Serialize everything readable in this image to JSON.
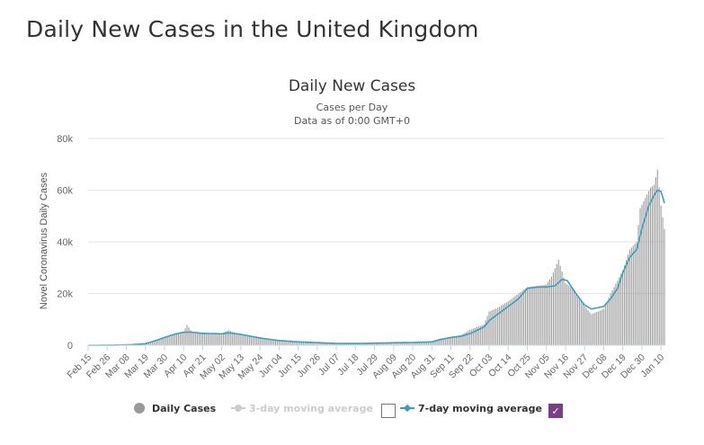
{
  "page": {
    "title": "Daily New Cases in the United Kingdom"
  },
  "chart_data": {
    "type": "bar",
    "title": "Daily New Cases",
    "subtitle_lines": [
      "Cases per Day",
      "Data as of 0:00 GMT+0"
    ],
    "ylabel": "Novel Coronavirus Daily Cases",
    "xlabel": "",
    "ylim": [
      0,
      80000
    ],
    "y_ticks": [
      0,
      20000,
      40000,
      60000,
      80000
    ],
    "y_tick_labels": [
      "0",
      "20k",
      "40k",
      "60k",
      "80k"
    ],
    "x_range": [
      "2020-02-15",
      "2021-01-12"
    ],
    "x_tick_labels": [
      "Feb 15",
      "Feb 26",
      "Mar 08",
      "Mar 19",
      "Mar 30",
      "Apr 10",
      "Apr 21",
      "May 02",
      "May 13",
      "May 24",
      "Jun 04",
      "Jun 15",
      "Jun 26",
      "Jul 07",
      "Jul 18",
      "Jul 29",
      "Aug 09",
      "Aug 20",
      "Aug 31",
      "Sep 11",
      "Sep 22",
      "Oct 03",
      "Oct 14",
      "Oct 25",
      "Nov 05",
      "Nov 16",
      "Nov 27",
      "Dec 08",
      "Dec 19",
      "Dec 30",
      "Jan 10"
    ],
    "grid": true,
    "legend_position": "bottom",
    "series": [
      {
        "name": "Daily Cases",
        "style": "bar",
        "color": "#999999",
        "points": [
          [
            "2020-02-15",
            0
          ],
          [
            "2020-03-01",
            50
          ],
          [
            "2020-03-10",
            150
          ],
          [
            "2020-03-20",
            900
          ],
          [
            "2020-03-25",
            2000
          ],
          [
            "2020-03-30",
            3000
          ],
          [
            "2020-04-05",
            4500
          ],
          [
            "2020-04-10",
            5300
          ],
          [
            "2020-04-12",
            7800
          ],
          [
            "2020-04-15",
            5000
          ],
          [
            "2020-04-21",
            4700
          ],
          [
            "2020-04-28",
            4300
          ],
          [
            "2020-05-02",
            4600
          ],
          [
            "2020-05-06",
            5800
          ],
          [
            "2020-05-13",
            4000
          ],
          [
            "2020-05-18",
            3300
          ],
          [
            "2020-05-24",
            2700
          ],
          [
            "2020-06-04",
            2000
          ],
          [
            "2020-06-15",
            1400
          ],
          [
            "2020-06-26",
            1100
          ],
          [
            "2020-07-07",
            750
          ],
          [
            "2020-07-18",
            700
          ],
          [
            "2020-07-29",
            900
          ],
          [
            "2020-08-09",
            1000
          ],
          [
            "2020-08-20",
            1100
          ],
          [
            "2020-08-31",
            1400
          ],
          [
            "2020-09-05",
            2600
          ],
          [
            "2020-09-11",
            3200
          ],
          [
            "2020-09-17",
            4000
          ],
          [
            "2020-09-22",
            6000
          ],
          [
            "2020-09-30",
            8000
          ],
          [
            "2020-10-03",
            13000
          ],
          [
            "2020-10-08",
            14500
          ],
          [
            "2020-10-14",
            17000
          ],
          [
            "2020-10-20",
            20000
          ],
          [
            "2020-10-25",
            22500
          ],
          [
            "2020-10-31",
            23000
          ],
          [
            "2020-11-05",
            23500
          ],
          [
            "2020-11-08",
            26500
          ],
          [
            "2020-11-12",
            33000
          ],
          [
            "2020-11-16",
            24000
          ],
          [
            "2020-11-20",
            22000
          ],
          [
            "2020-11-27",
            15000
          ],
          [
            "2020-12-01",
            12000
          ],
          [
            "2020-12-08",
            14000
          ],
          [
            "2020-12-12",
            20000
          ],
          [
            "2020-12-16",
            25000
          ],
          [
            "2020-12-19",
            29000
          ],
          [
            "2020-12-23",
            37000
          ],
          [
            "2020-12-27",
            40000
          ],
          [
            "2020-12-29",
            53000
          ],
          [
            "2021-01-01",
            57000
          ],
          [
            "2021-01-04",
            61000
          ],
          [
            "2021-01-06",
            62000
          ],
          [
            "2021-01-08",
            68000
          ],
          [
            "2021-01-10",
            54000
          ],
          [
            "2021-01-12",
            45000
          ]
        ]
      },
      {
        "name": "3-day moving average",
        "style": "line",
        "color": "#cccccc",
        "enabled": false
      },
      {
        "name": "7-day moving average",
        "style": "line",
        "color": "#3a9fbf",
        "enabled": true,
        "points": [
          [
            "2020-02-15",
            0
          ],
          [
            "2020-03-01",
            40
          ],
          [
            "2020-03-10",
            150
          ],
          [
            "2020-03-19",
            600
          ],
          [
            "2020-03-25",
            1800
          ],
          [
            "2020-03-30",
            3000
          ],
          [
            "2020-04-05",
            4300
          ],
          [
            "2020-04-10",
            5000
          ],
          [
            "2020-04-15",
            5000
          ],
          [
            "2020-04-21",
            4600
          ],
          [
            "2020-05-02",
            4400
          ],
          [
            "2020-05-06",
            4800
          ],
          [
            "2020-05-13",
            4200
          ],
          [
            "2020-05-24",
            2800
          ],
          [
            "2020-06-04",
            1800
          ],
          [
            "2020-06-15",
            1300
          ],
          [
            "2020-06-26",
            1000
          ],
          [
            "2020-07-07",
            700
          ],
          [
            "2020-07-18",
            650
          ],
          [
            "2020-07-29",
            800
          ],
          [
            "2020-08-09",
            950
          ],
          [
            "2020-08-20",
            1050
          ],
          [
            "2020-08-31",
            1300
          ],
          [
            "2020-09-05",
            2200
          ],
          [
            "2020-09-11",
            3000
          ],
          [
            "2020-09-17",
            3500
          ],
          [
            "2020-09-22",
            4500
          ],
          [
            "2020-09-30",
            7000
          ],
          [
            "2020-10-03",
            9500
          ],
          [
            "2020-10-08",
            12000
          ],
          [
            "2020-10-14",
            15000
          ],
          [
            "2020-10-20",
            18000
          ],
          [
            "2020-10-25",
            22000
          ],
          [
            "2020-10-31",
            22500
          ],
          [
            "2020-11-05",
            22500
          ],
          [
            "2020-11-10",
            23000
          ],
          [
            "2020-11-14",
            25500
          ],
          [
            "2020-11-17",
            25000
          ],
          [
            "2020-11-22",
            20000
          ],
          [
            "2020-11-27",
            15500
          ],
          [
            "2020-12-01",
            14000
          ],
          [
            "2020-12-08",
            15000
          ],
          [
            "2020-12-12",
            18000
          ],
          [
            "2020-12-16",
            22000
          ],
          [
            "2020-12-19",
            28000
          ],
          [
            "2020-12-23",
            34000
          ],
          [
            "2020-12-27",
            37000
          ],
          [
            "2020-12-30",
            45000
          ],
          [
            "2021-01-03",
            54000
          ],
          [
            "2021-01-06",
            58000
          ],
          [
            "2021-01-08",
            60000
          ],
          [
            "2021-01-10",
            59500
          ],
          [
            "2021-01-12",
            55000
          ]
        ]
      }
    ]
  },
  "legend": {
    "daily_label": "Daily Cases",
    "avg3_label": "3-day moving average",
    "avg7_label": "7-day moving average",
    "avg3_checked": false,
    "avg7_checked": true,
    "checkmark": "✓"
  }
}
